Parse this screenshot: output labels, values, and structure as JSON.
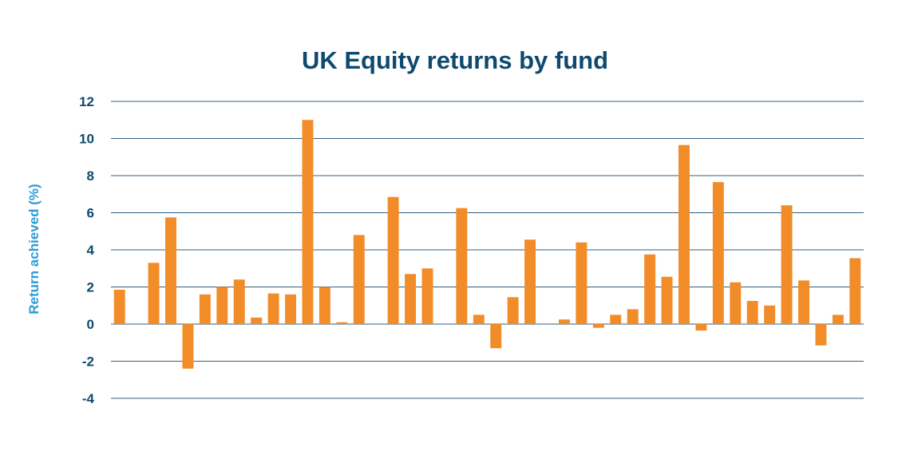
{
  "chart_data": {
    "type": "bar",
    "title": "UK Equity returns by fund",
    "xlabel": "",
    "ylabel": "Return achieved (%)",
    "ylim": [
      -4,
      12
    ],
    "yticks": [
      12,
      10,
      8,
      6,
      4,
      2,
      0,
      -2,
      -4
    ],
    "grid": true,
    "legend": "none",
    "colors": {
      "bar": "#F28C28",
      "title": "#0E4A6E",
      "ylabel": "#2E9BD6",
      "ticks": "#0E4A6E",
      "grid": "#2F5F80"
    },
    "series": [
      {
        "values": [
          1.85,
          null,
          3.3,
          5.75,
          -2.4,
          1.6,
          2.0,
          2.4,
          0.35,
          1.65,
          1.6,
          11.0,
          2.0,
          0.1,
          4.8,
          null,
          6.85,
          2.7,
          3.0,
          null,
          6.25,
          0.5,
          -1.3,
          1.45,
          4.55,
          null,
          0.25,
          4.4,
          -0.2,
          0.5,
          0.8,
          3.75,
          2.55,
          9.65,
          -0.35,
          7.65,
          2.25,
          1.25,
          1.0,
          6.4,
          2.35,
          -1.15,
          0.5,
          3.55
        ]
      }
    ]
  }
}
